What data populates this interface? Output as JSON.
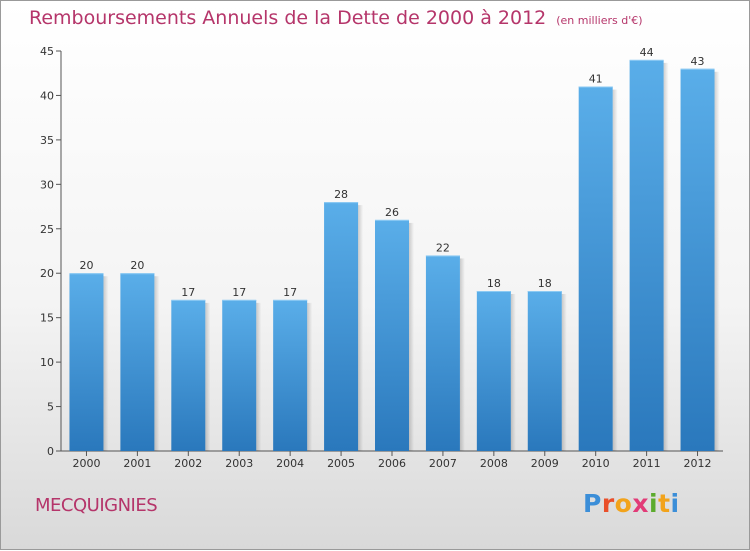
{
  "title": "Remboursements Annuels de la Dette de 2000 à 2012",
  "subtitle": "(en milliers d'€)",
  "commune": "MECQUIGNIES",
  "logo": {
    "letters": [
      "P",
      "r",
      "o",
      "x",
      "i",
      "t",
      "i"
    ],
    "colors": [
      "#3b8ed8",
      "#e94f2a",
      "#f2a31b",
      "#e23b77",
      "#5cab2d",
      "#f2a31b",
      "#3b8ed8"
    ]
  },
  "colors": {
    "bar": "#4a9ee0",
    "title": "#b5356a"
  },
  "chart_data": {
    "type": "bar",
    "categories": [
      "2000",
      "2001",
      "2002",
      "2003",
      "2004",
      "2005",
      "2006",
      "2007",
      "2008",
      "2009",
      "2010",
      "2011",
      "2012"
    ],
    "values": [
      20,
      20,
      17,
      17,
      17,
      28,
      26,
      22,
      18,
      18,
      41,
      44,
      43
    ],
    "ylim": [
      0,
      45
    ],
    "yticks": [
      0,
      5,
      10,
      15,
      20,
      25,
      30,
      35,
      40,
      45
    ],
    "grid": false,
    "legend": "none"
  }
}
